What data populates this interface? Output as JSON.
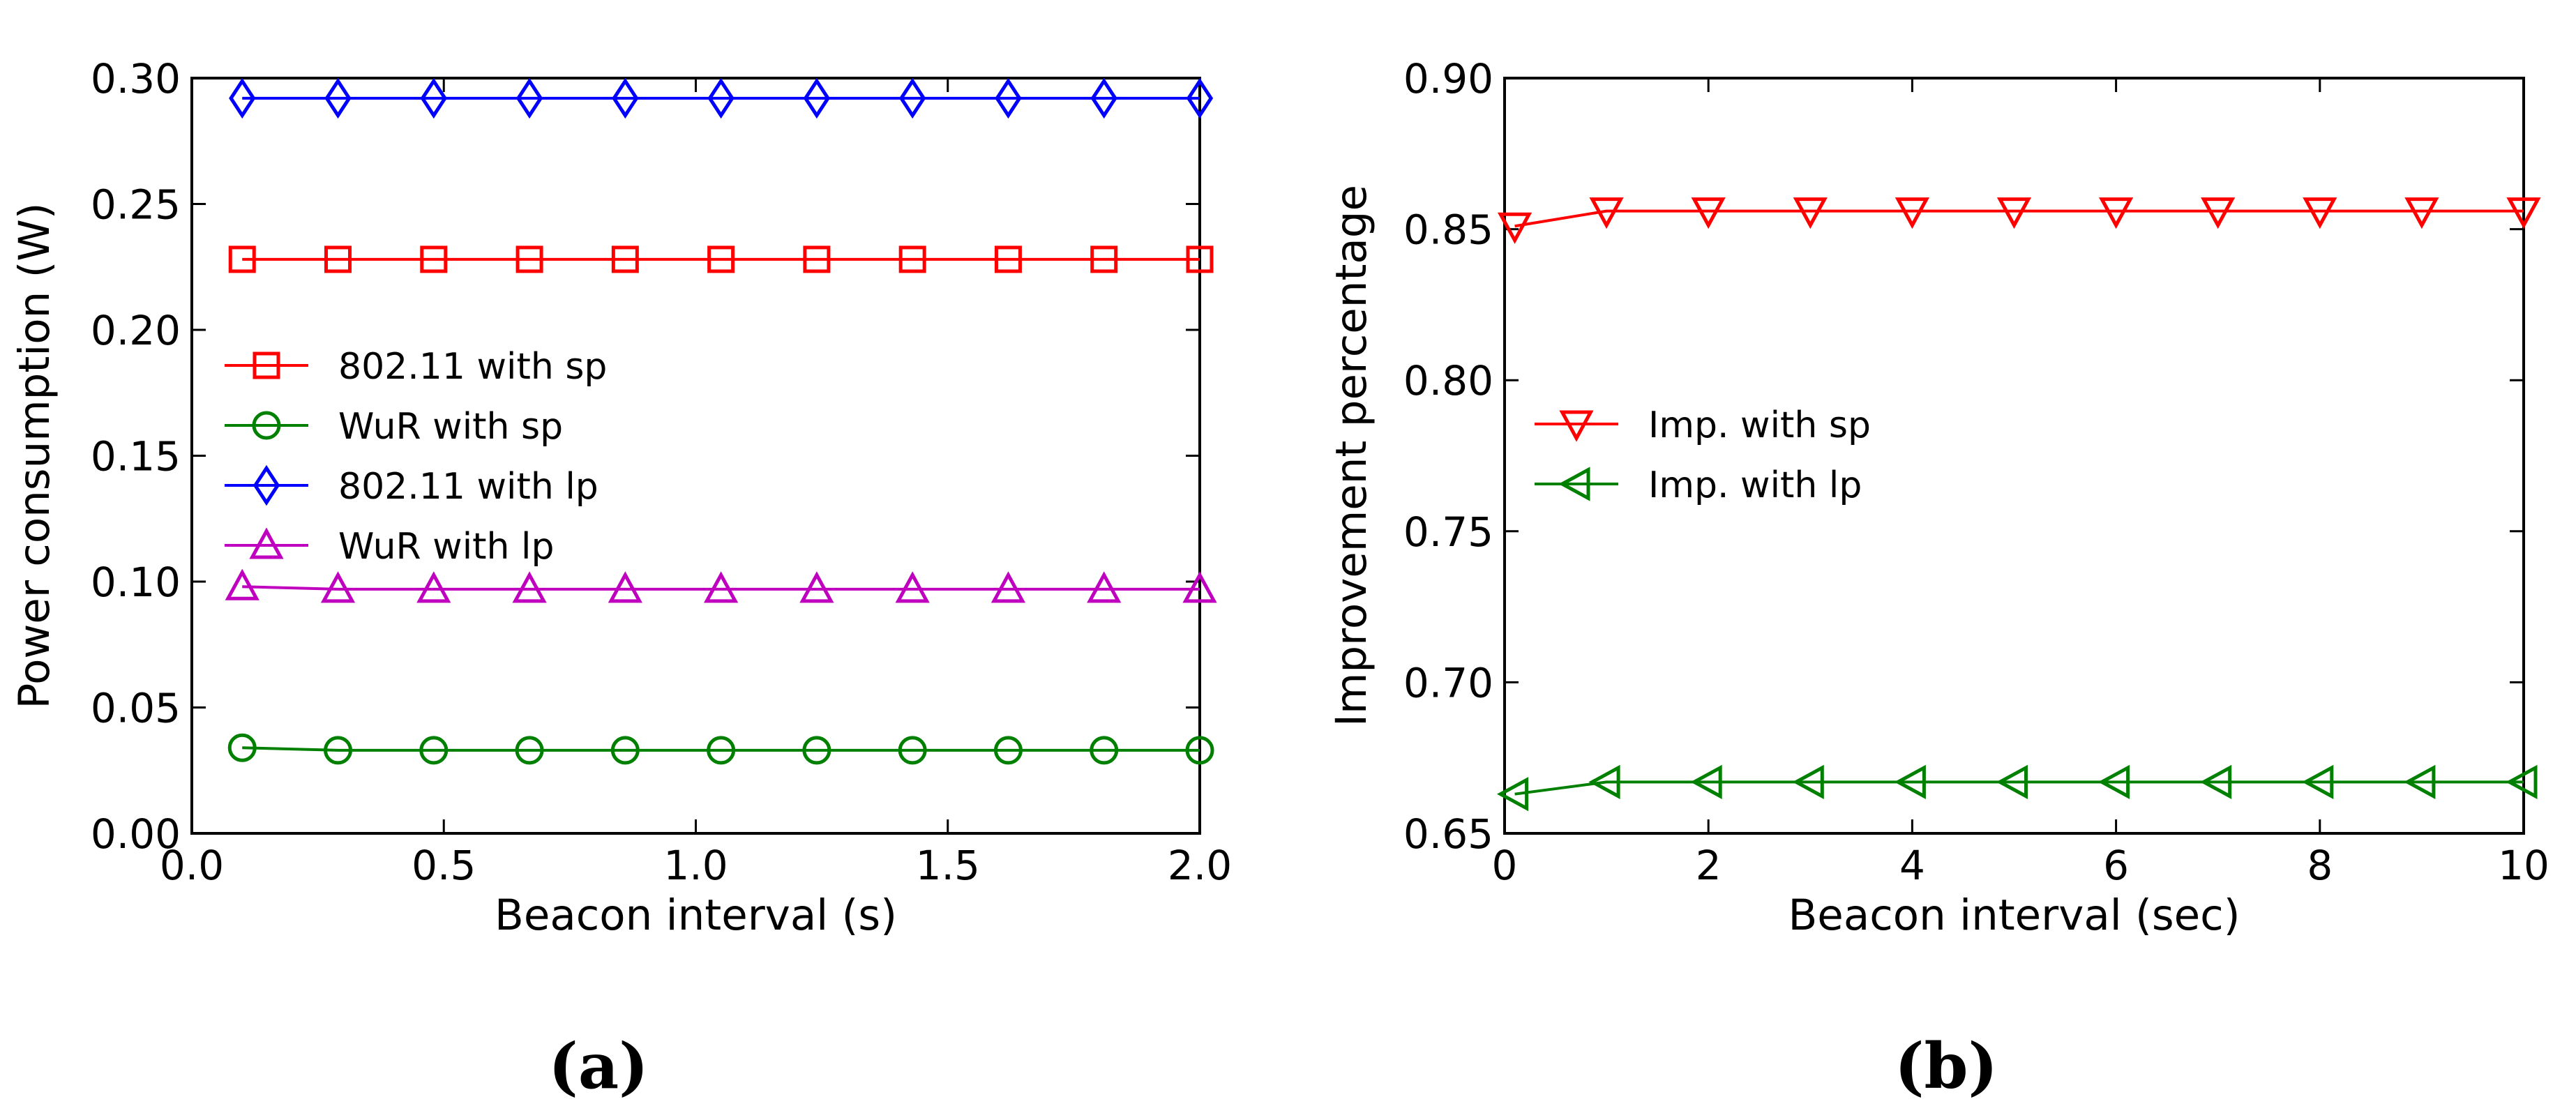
{
  "captions": {
    "a": "(a)",
    "b": "(b)"
  },
  "colors": {
    "red": "#ff0000",
    "green": "#008000",
    "blue": "#0000ff",
    "magenta": "#bf00bf",
    "axis": "#000000"
  },
  "chart_data": [
    {
      "type": "line",
      "title": "",
      "xlabel": "Beacon interval (s)",
      "ylabel": "Power consumption (W)",
      "xlim": [
        0.0,
        2.0
      ],
      "ylim": [
        0.0,
        0.3
      ],
      "xticks": [
        0.0,
        0.5,
        1.0,
        1.5,
        2.0
      ],
      "xtick_labels": [
        "0.0",
        "0.5",
        "1.0",
        "1.5",
        "2.0"
      ],
      "yticks": [
        0.0,
        0.05,
        0.1,
        0.15,
        0.2,
        0.25,
        0.3
      ],
      "ytick_labels": [
        "0.00",
        "0.05",
        "0.10",
        "0.15",
        "0.20",
        "0.25",
        "0.30"
      ],
      "legend_position": "center-left",
      "x": [
        0.1,
        0.29,
        0.48,
        0.67,
        0.86,
        1.05,
        1.24,
        1.43,
        1.62,
        1.81,
        2.0
      ],
      "series": [
        {
          "name": "802.11 with sp",
          "color": "#ff0000",
          "marker": "square",
          "values": [
            0.228,
            0.228,
            0.228,
            0.228,
            0.228,
            0.228,
            0.228,
            0.228,
            0.228,
            0.228,
            0.228
          ]
        },
        {
          "name": "WuR with sp",
          "color": "#008000",
          "marker": "circle",
          "values": [
            0.034,
            0.033,
            0.033,
            0.033,
            0.033,
            0.033,
            0.033,
            0.033,
            0.033,
            0.033,
            0.033
          ]
        },
        {
          "name": "802.11 with lp",
          "color": "#0000ff",
          "marker": "diamond",
          "values": [
            0.292,
            0.292,
            0.292,
            0.292,
            0.292,
            0.292,
            0.292,
            0.292,
            0.292,
            0.292,
            0.292
          ]
        },
        {
          "name": "WuR with lp",
          "color": "#bf00bf",
          "marker": "triangle-up",
          "values": [
            0.098,
            0.097,
            0.097,
            0.097,
            0.097,
            0.097,
            0.097,
            0.097,
            0.097,
            0.097,
            0.097
          ]
        }
      ]
    },
    {
      "type": "line",
      "title": "",
      "xlabel": "Beacon interval (sec)",
      "ylabel": "Improvement percentage",
      "xlim": [
        0,
        10
      ],
      "ylim": [
        0.65,
        0.9
      ],
      "xticks": [
        0,
        2,
        4,
        6,
        8,
        10
      ],
      "xtick_labels": [
        "0",
        "2",
        "4",
        "6",
        "8",
        "10"
      ],
      "yticks": [
        0.65,
        0.7,
        0.75,
        0.8,
        0.85,
        0.9
      ],
      "ytick_labels": [
        "0.65",
        "0.70",
        "0.75",
        "0.80",
        "0.85",
        "0.90"
      ],
      "legend_position": "center-left",
      "x": [
        0.1,
        1,
        2,
        3,
        4,
        5,
        6,
        7,
        8,
        9,
        10
      ],
      "series": [
        {
          "name": "Imp. with sp",
          "color": "#ff0000",
          "marker": "triangle-down",
          "values": [
            0.851,
            0.856,
            0.856,
            0.856,
            0.856,
            0.856,
            0.856,
            0.856,
            0.856,
            0.856,
            0.856
          ]
        },
        {
          "name": "Imp. with lp",
          "color": "#008000",
          "marker": "triangle-left",
          "values": [
            0.663,
            0.667,
            0.667,
            0.667,
            0.667,
            0.667,
            0.667,
            0.667,
            0.667,
            0.667,
            0.667
          ]
        }
      ]
    }
  ]
}
